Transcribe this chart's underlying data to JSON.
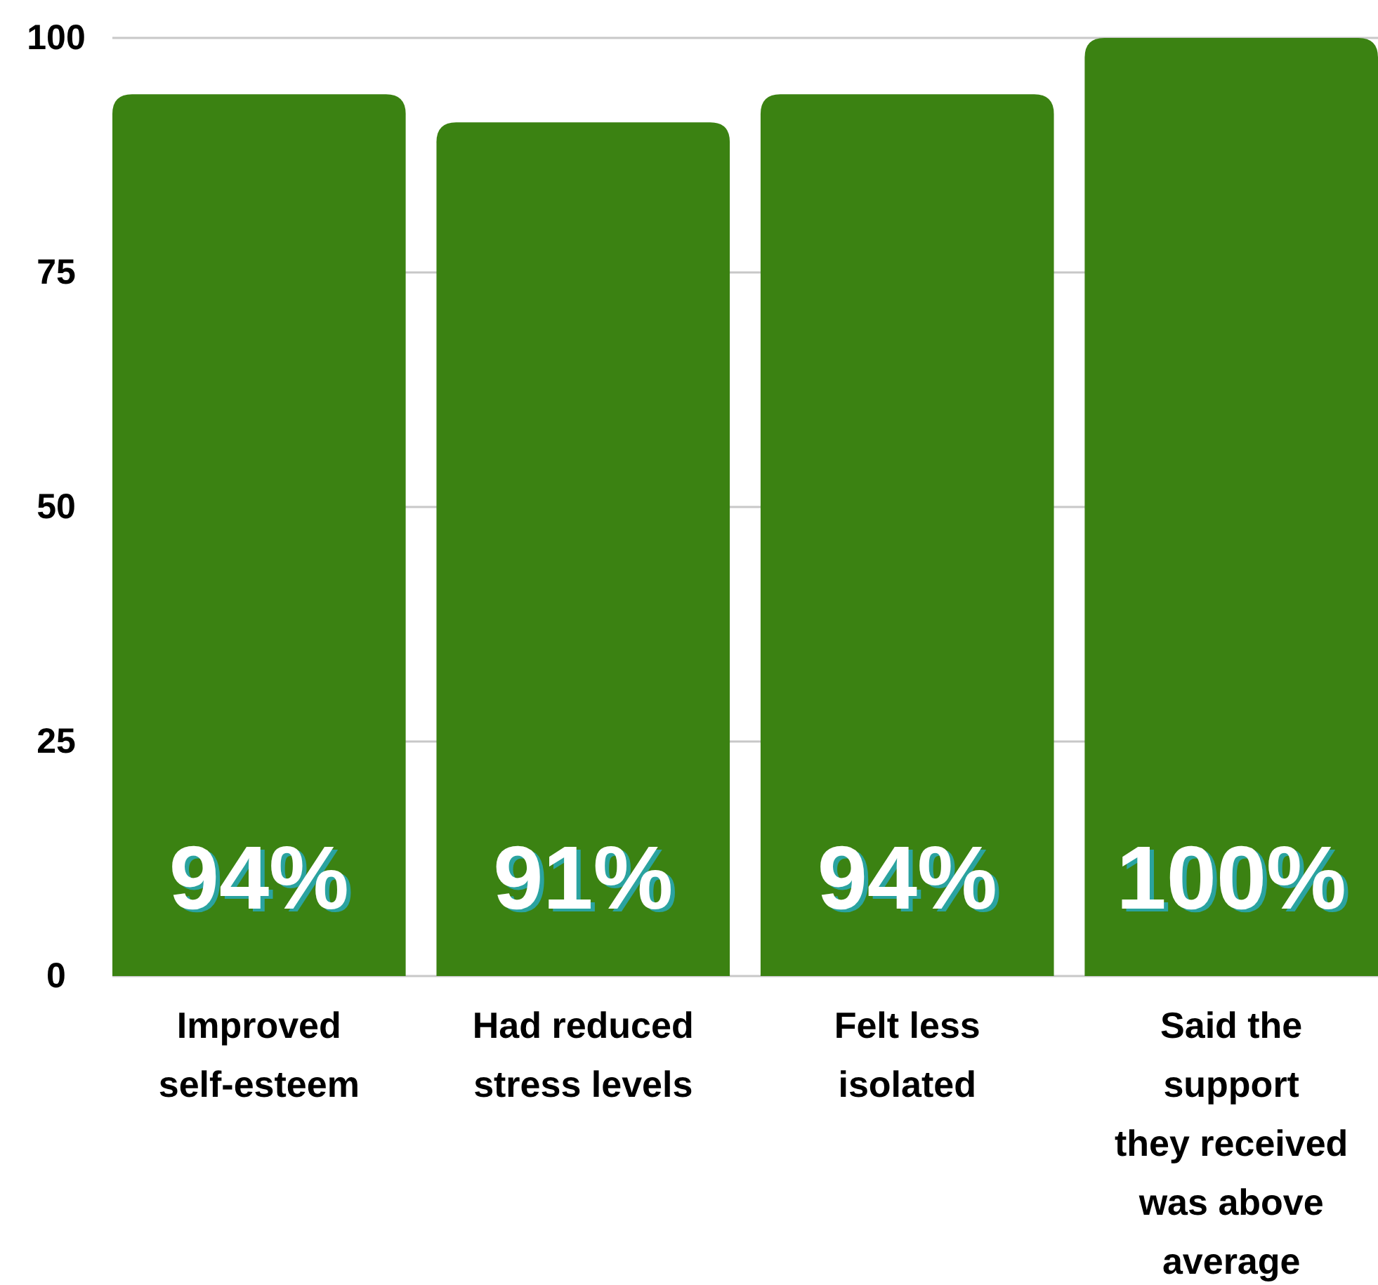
{
  "chart_data": {
    "type": "bar",
    "categories": [
      "Improved\nself-esteem",
      "Had reduced\nstress levels",
      "Felt less\nisolated",
      "Said the\nsupport\nthey received\nwas above\naverage"
    ],
    "values": [
      94,
      91,
      94,
      100
    ],
    "value_labels": [
      "94%",
      "91%",
      "94%",
      "100%"
    ],
    "color": "#3b8212",
    "ylim": [
      0,
      100
    ],
    "yticks": [
      0,
      25,
      50,
      75,
      100
    ],
    "grid": "y"
  }
}
